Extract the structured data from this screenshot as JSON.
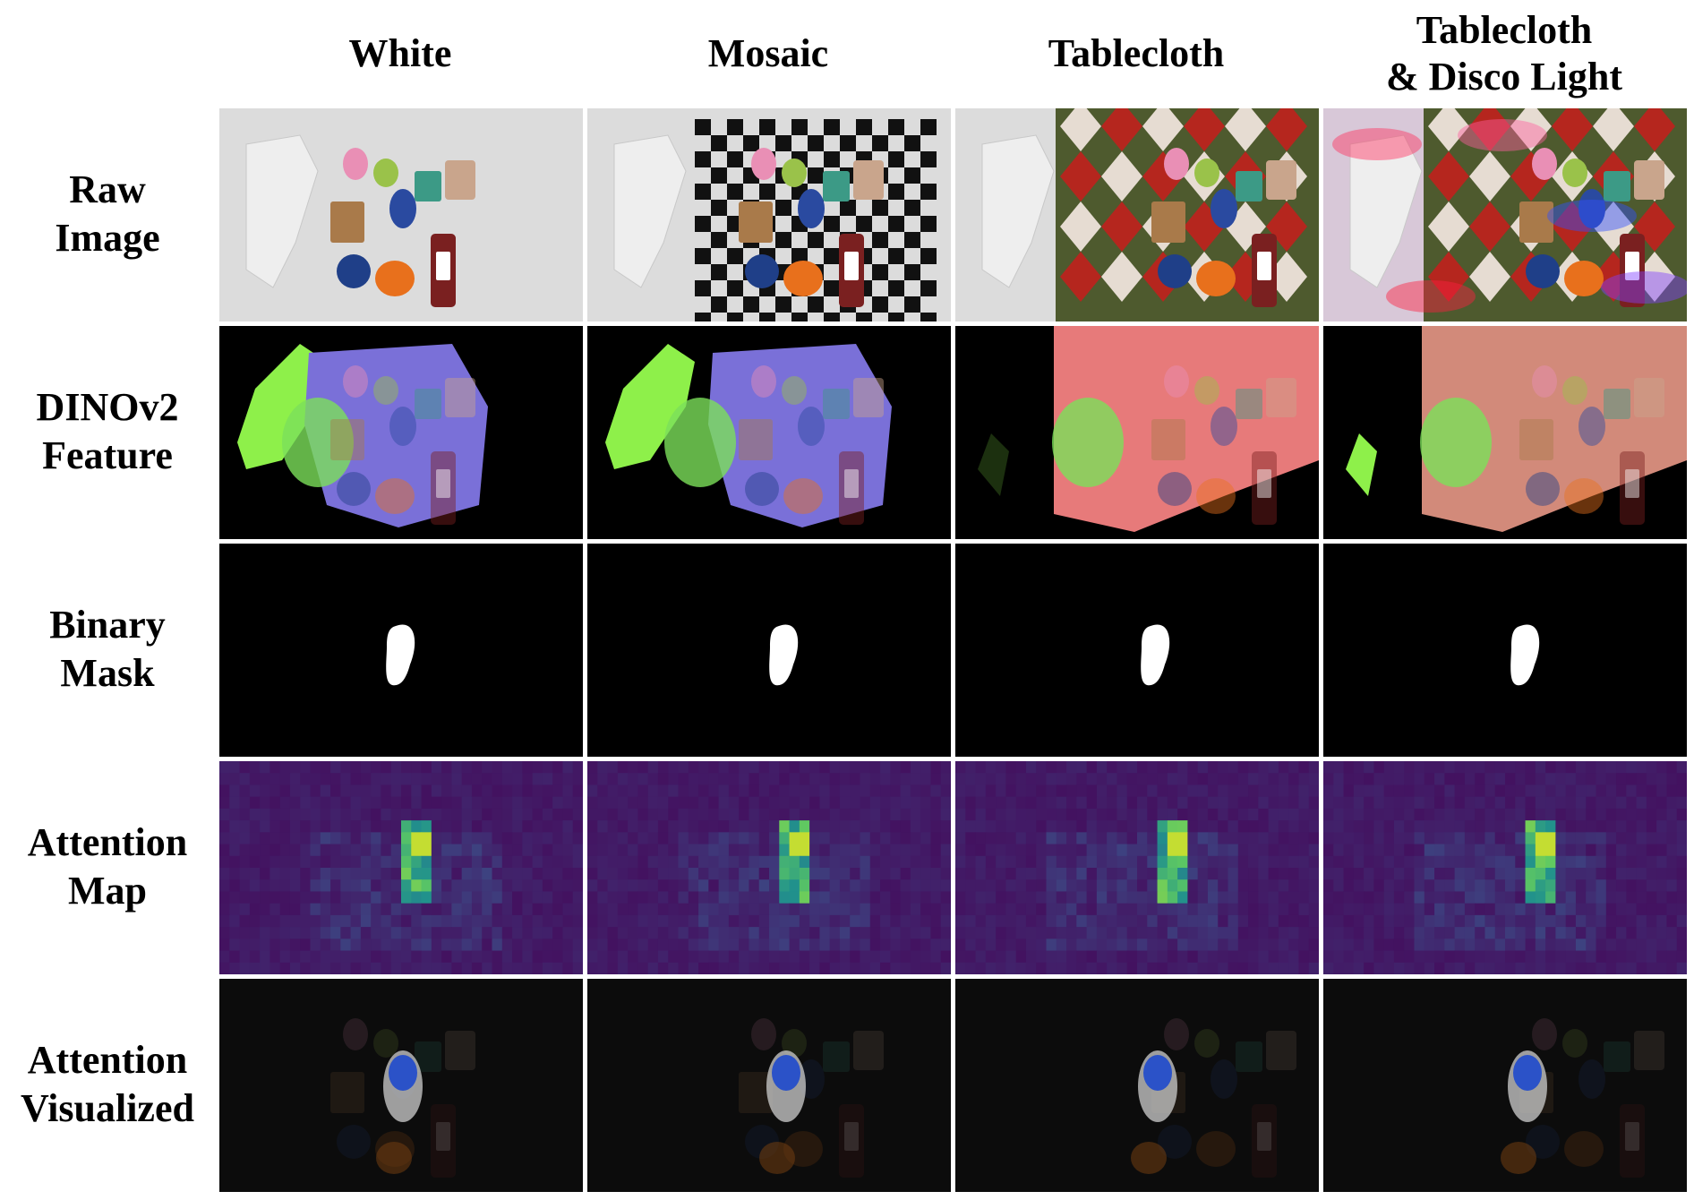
{
  "columns": [
    {
      "label": "White"
    },
    {
      "label": "Mosaic"
    },
    {
      "label": "Tablecloth"
    },
    {
      "label": "Tablecloth\n& Disco Light"
    }
  ],
  "rows": [
    {
      "label": "Raw\nImage"
    },
    {
      "label": "DINOv2\nFeature"
    },
    {
      "label": "Binary\nMask"
    },
    {
      "label": "Attention\nMap"
    },
    {
      "label": "Attention\nVisualized"
    }
  ],
  "colors": {
    "background": "#ffffff",
    "viridis_low": "#440c5c",
    "viridis_high": "#f4e61c",
    "tablecloth_red": "#b5261e",
    "tablecloth_green": "#4e5a2e",
    "feature_green": "#8ef04a"
  }
}
